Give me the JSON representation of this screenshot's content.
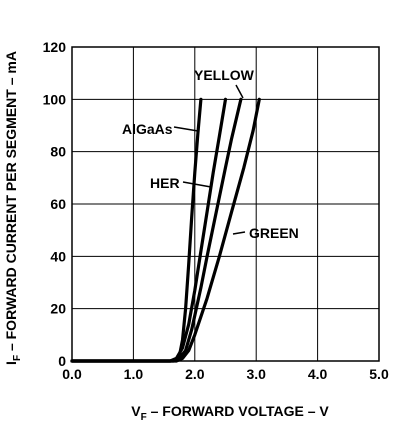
{
  "chart_data": {
    "type": "line",
    "xlabel": "V",
    "xlabel_sub": "F",
    "xlabel_rest": " – FORWARD VOLTAGE – V",
    "ylabel": "I",
    "ylabel_sub": "F",
    "ylabel_rest": " – FORWARD CURRENT PER SEGMENT – mA",
    "xlim": [
      0,
      5
    ],
    "ylim": [
      0,
      120
    ],
    "x_ticks": [
      "0.0",
      "1.0",
      "2.0",
      "3.0",
      "4.0",
      "5.0"
    ],
    "y_ticks": [
      "0",
      "20",
      "40",
      "60",
      "80",
      "100",
      "120"
    ],
    "grid": true,
    "series": [
      {
        "name": "AlGaAs",
        "x": [
          0,
          1.6,
          1.7,
          1.75,
          1.8,
          1.85,
          1.9,
          1.95,
          2.0,
          2.05,
          2.1
        ],
        "y": [
          0,
          0,
          0.5,
          2,
          8,
          20,
          37,
          55,
          72,
          87,
          100
        ]
      },
      {
        "name": "HER",
        "x": [
          0,
          1.6,
          1.7,
          1.8,
          1.9,
          2.0,
          2.1,
          2.2,
          2.3,
          2.4,
          2.5
        ],
        "y": [
          0,
          0,
          1,
          5,
          14,
          27,
          42,
          57,
          72,
          86,
          100
        ]
      },
      {
        "name": "YELLOW",
        "x": [
          0,
          1.65,
          1.75,
          1.85,
          1.95,
          2.1,
          2.2,
          2.35,
          2.5,
          2.6,
          2.75
        ],
        "y": [
          0,
          0,
          1,
          4,
          12,
          28,
          40,
          57,
          74,
          85,
          100
        ]
      },
      {
        "name": "GREEN",
        "x": [
          0,
          1.7,
          1.8,
          1.9,
          2.0,
          2.2,
          2.4,
          2.6,
          2.8,
          2.95,
          3.05
        ],
        "y": [
          0,
          0,
          1,
          4,
          10,
          24,
          40,
          57,
          74,
          88,
          100
        ]
      }
    ]
  }
}
